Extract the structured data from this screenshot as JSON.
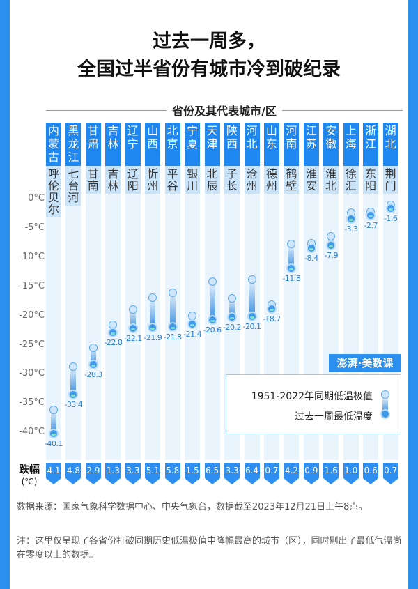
{
  "title_line1": "过去一周多，",
  "title_line2": "全国过半省份有城市冷到破纪录",
  "subtitle": "省份及其代表城市/区",
  "logo": "澎湃·美数课",
  "drop_label": "跌幅",
  "drop_unit": "(℃)",
  "legend": {
    "historical": "1951-2022年同期低温极值",
    "recent": "过去一周最低温度"
  },
  "source": "数据来源：国家气象科学数据中心、中央气象台，数据截至2023年12月21日上午8点。",
  "note": "注：这里仅呈现了各省份打破同期历史低温极值中降幅最高的城市（区），同时剔出了最低气温尚在零度以上的数据。",
  "colors": {
    "accent": "#1e87f0",
    "column": "#e9f4fd"
  },
  "chart_data": {
    "type": "dumbbell",
    "title": "过去一周多，全国过半省份有城市冷到破纪录",
    "ylabel": "°C",
    "ylim": [
      -40,
      0
    ],
    "yticks": [
      "0°C",
      "-5°C",
      "-10°C",
      "-15°C",
      "-20°C",
      "-25°C",
      "-30°C",
      "-35°C",
      "-40°C"
    ],
    "provinces": [
      "内蒙古",
      "黑龙江",
      "甘肃",
      "吉林",
      "辽宁",
      "山西",
      "北京",
      "宁夏",
      "天津",
      "陕西",
      "河北",
      "山东",
      "河南",
      "江苏",
      "安徽",
      "上海",
      "浙江",
      "湖北"
    ],
    "cities": [
      "呼伦贝尔",
      "七台河",
      "甘南",
      "吉林",
      "辽阳",
      "忻州",
      "平谷",
      "银川",
      "北辰",
      "子长",
      "沧州",
      "德州",
      "鹤壁",
      "淮安",
      "淮北",
      "徐汇",
      "东阳",
      "荆门"
    ],
    "recent_low": [
      -40.1,
      -33.4,
      -28.3,
      -22.8,
      -22.1,
      -21.9,
      -21.8,
      -21.4,
      -20.6,
      -20.2,
      -20.1,
      -18.7,
      -11.8,
      -8.4,
      -7.9,
      -3.3,
      -2.7,
      -1.6
    ],
    "historical_low": [
      -36.0,
      -28.6,
      -25.4,
      -21.5,
      -18.8,
      -16.8,
      -16.0,
      -19.9,
      -14.1,
      -16.9,
      -13.7,
      -18.0,
      -7.6,
      -7.5,
      -6.3,
      -2.3,
      -2.1,
      -0.9
    ],
    "drop": [
      "4.1",
      "4.8",
      "2.9",
      "1.3",
      "3.3",
      "5.1",
      "5.8",
      "1.5",
      "6.5",
      "3.3",
      "6.4",
      "0.7",
      "4.2",
      "0.9",
      "1.6",
      "1.0",
      "0.6",
      "0.7"
    ]
  }
}
